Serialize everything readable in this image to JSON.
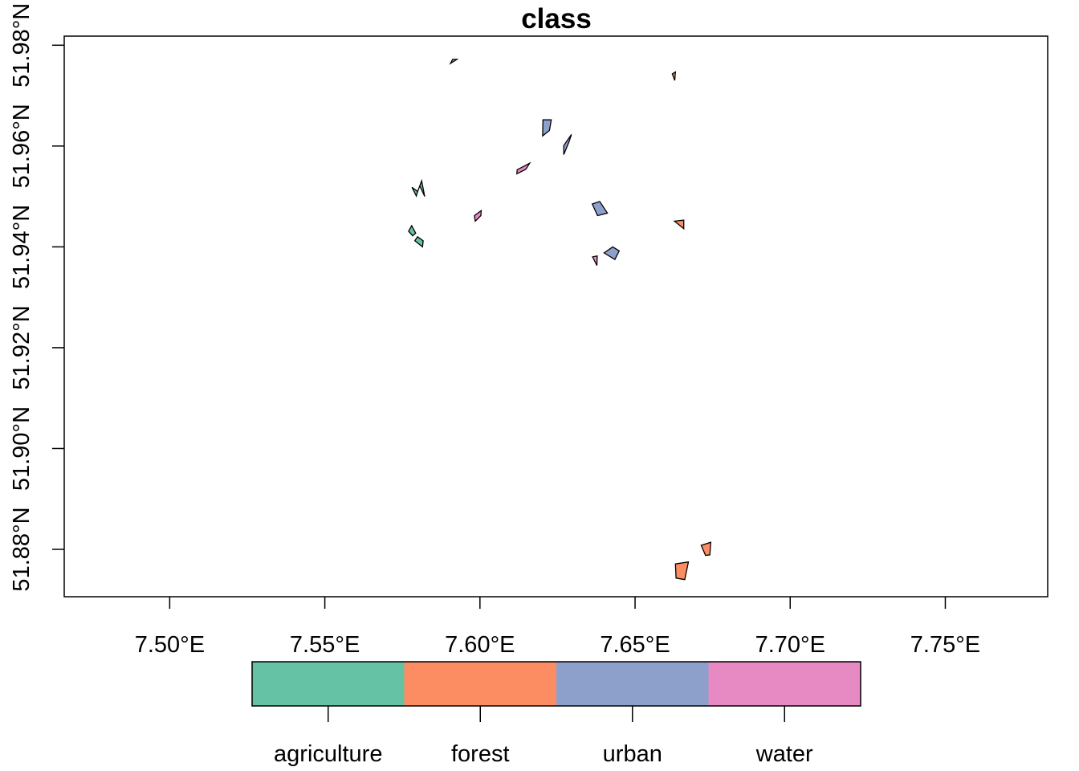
{
  "title": "class",
  "x_axis": {
    "ticks": [
      7.5,
      7.55,
      7.6,
      7.65,
      7.7,
      7.75
    ],
    "labels": [
      "7.50°E",
      "7.55°E",
      "7.60°E",
      "7.65°E",
      "7.70°E",
      "7.75°E"
    ],
    "range": [
      7.466,
      7.783
    ]
  },
  "y_axis": {
    "ticks": [
      51.88,
      51.9,
      51.92,
      51.94,
      51.96,
      51.98
    ],
    "labels": [
      "51.88°N",
      "51.90°N",
      "51.92°N",
      "51.94°N",
      "51.96°N",
      "51.98°N"
    ],
    "range": [
      51.8706,
      51.9818
    ]
  },
  "legend": {
    "items": [
      {
        "label": "agriculture",
        "color": "#66C2A5"
      },
      {
        "label": "forest",
        "color": "#FC8D62"
      },
      {
        "label": "urban",
        "color": "#8DA0CB"
      },
      {
        "label": "water",
        "color": "#E78AC3"
      }
    ]
  },
  "polygons": [
    {
      "class": "agriculture",
      "coords": [
        [
          7.5905,
          51.9764
        ],
        [
          7.5926,
          51.9772
        ],
        [
          7.5912,
          51.9772
        ]
      ]
    },
    {
      "class": "agriculture",
      "coords": [
        [
          7.5798,
          51.9508
        ],
        [
          7.5812,
          51.9531
        ],
        [
          7.5822,
          51.95
        ],
        [
          7.5806,
          51.9521
        ]
      ]
    },
    {
      "class": "agriculture",
      "coords": [
        [
          7.5781,
          51.9518
        ],
        [
          7.5799,
          51.951
        ],
        [
          7.5795,
          51.9501
        ]
      ]
    },
    {
      "class": "agriculture",
      "coords": [
        [
          7.577,
          51.9431
        ],
        [
          7.578,
          51.9442
        ],
        [
          7.5793,
          51.9427
        ],
        [
          7.5783,
          51.9422
        ]
      ]
    },
    {
      "class": "agriculture",
      "coords": [
        [
          7.579,
          51.9412
        ],
        [
          7.5799,
          51.942
        ],
        [
          7.5817,
          51.9412
        ],
        [
          7.5815,
          51.94
        ]
      ]
    },
    {
      "class": "forest",
      "coords": [
        [
          7.662,
          51.9743
        ],
        [
          7.663,
          51.9747
        ],
        [
          7.6628,
          51.973
        ]
      ]
    },
    {
      "class": "forest",
      "coords": [
        [
          7.6627,
          51.9451
        ],
        [
          7.6657,
          51.9453
        ],
        [
          7.6657,
          51.9436
        ]
      ]
    },
    {
      "class": "forest",
      "coords": [
        [
          7.6713,
          51.8808
        ],
        [
          7.6744,
          51.8814
        ],
        [
          7.6741,
          51.8789
        ],
        [
          7.6727,
          51.8788
        ]
      ]
    },
    {
      "class": "forest",
      "coords": [
        [
          7.663,
          51.8771
        ],
        [
          7.6672,
          51.8775
        ],
        [
          7.666,
          51.874
        ],
        [
          7.6632,
          51.8743
        ]
      ]
    },
    {
      "class": "urban",
      "coords": [
        [
          7.6203,
          51.9652
        ],
        [
          7.623,
          51.9652
        ],
        [
          7.6224,
          51.9631
        ],
        [
          7.6202,
          51.962
        ]
      ]
    },
    {
      "class": "urban",
      "coords": [
        [
          7.627,
          51.9601
        ],
        [
          7.6295,
          51.9623
        ],
        [
          7.6287,
          51.9608
        ],
        [
          7.627,
          51.9583
        ]
      ]
    },
    {
      "class": "urban",
      "coords": [
        [
          7.6362,
          51.9485
        ],
        [
          7.6386,
          51.949
        ],
        [
          7.6411,
          51.9467
        ],
        [
          7.6379,
          51.9462
        ]
      ]
    },
    {
      "class": "urban",
      "coords": [
        [
          7.64,
          51.9388
        ],
        [
          7.6428,
          51.94
        ],
        [
          7.6449,
          51.9392
        ],
        [
          7.6435,
          51.9375
        ]
      ]
    },
    {
      "class": "water",
      "coords": [
        [
          7.612,
          51.9553
        ],
        [
          7.6139,
          51.9559
        ],
        [
          7.616,
          51.9566
        ],
        [
          7.6148,
          51.9554
        ],
        [
          7.6119,
          51.9545
        ]
      ]
    },
    {
      "class": "water",
      "coords": [
        [
          7.5982,
          51.9462
        ],
        [
          7.6004,
          51.9472
        ],
        [
          7.6003,
          51.9462
        ],
        [
          7.5985,
          51.9451
        ]
      ]
    },
    {
      "class": "water",
      "coords": [
        [
          7.6363,
          51.938
        ],
        [
          7.6378,
          51.9382
        ],
        [
          7.6377,
          51.9363
        ]
      ]
    }
  ]
}
